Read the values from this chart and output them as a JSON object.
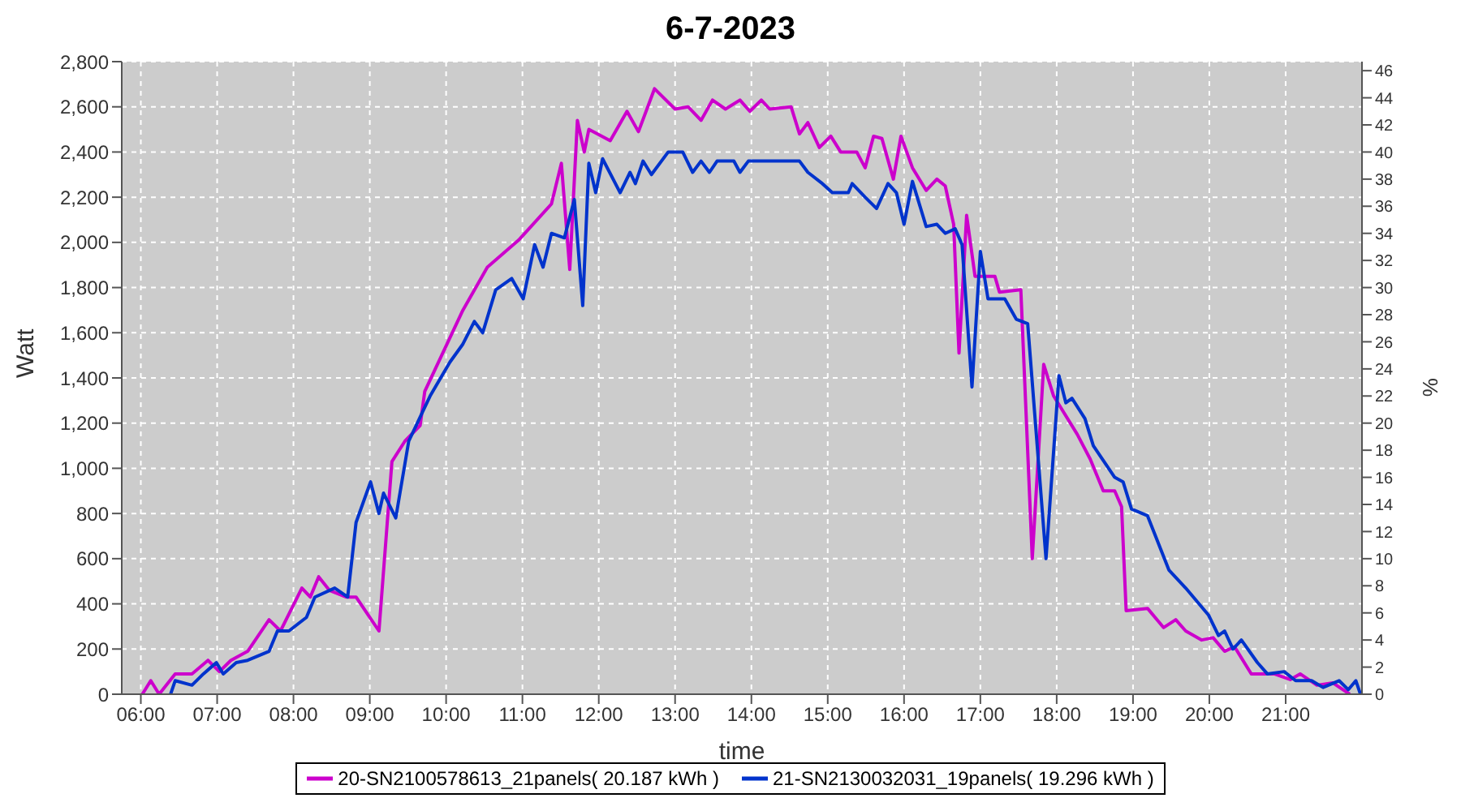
{
  "chart_data": {
    "type": "line",
    "title": "6-7-2023",
    "xlabel": "time",
    "ylabel": "Watt",
    "y2label": "%",
    "xlim": [
      5.75,
      22
    ],
    "xticks": [
      {
        "value": 6,
        "label": "06:00"
      },
      {
        "value": 7,
        "label": "07:00"
      },
      {
        "value": 8,
        "label": "08:00"
      },
      {
        "value": 9,
        "label": "09:00"
      },
      {
        "value": 10,
        "label": "10:00"
      },
      {
        "value": 11,
        "label": "11:00"
      },
      {
        "value": 12,
        "label": "12:00"
      },
      {
        "value": 13,
        "label": "13:00"
      },
      {
        "value": 14,
        "label": "14:00"
      },
      {
        "value": 15,
        "label": "15:00"
      },
      {
        "value": 16,
        "label": "16:00"
      },
      {
        "value": 17,
        "label": "17:00"
      },
      {
        "value": 18,
        "label": "18:00"
      },
      {
        "value": 19,
        "label": "19:00"
      },
      {
        "value": 20,
        "label": "20:00"
      },
      {
        "value": 21,
        "label": "21:00"
      }
    ],
    "ylim": [
      0,
      2800
    ],
    "yticks": [
      0,
      200,
      400,
      600,
      800,
      {
        "value": 1000,
        "label": "1,000"
      },
      {
        "value": 1200,
        "label": "1,200"
      },
      {
        "value": 1400,
        "label": "1,400"
      },
      {
        "value": 1600,
        "label": "1,600"
      },
      {
        "value": 1800,
        "label": "1,800"
      },
      {
        "value": 2000,
        "label": "2,000"
      },
      {
        "value": 2200,
        "label": "2,200"
      },
      {
        "value": 2400,
        "label": "2,400"
      },
      {
        "value": 2600,
        "label": "2,600"
      },
      {
        "value": 2800,
        "label": "2,800"
      }
    ],
    "y2lim": [
      0,
      46.667
    ],
    "y2ticks": [
      0,
      2,
      4,
      6,
      8,
      10,
      12,
      14,
      16,
      18,
      20,
      22,
      24,
      26,
      28,
      30,
      32,
      34,
      36,
      38,
      40,
      42,
      44,
      46
    ],
    "grid": true,
    "legend": "bottom",
    "series": [
      {
        "name": "20-SN2100578613_21panels( 20.187 kWh )",
        "color": "#cc00cc",
        "x": [
          6.02,
          6.13,
          6.24,
          6.45,
          6.67,
          6.88,
          7.03,
          7.18,
          7.4,
          7.68,
          7.83,
          8.11,
          8.22,
          8.33,
          8.47,
          8.69,
          8.82,
          9.12,
          9.29,
          9.46,
          9.66,
          9.72,
          10.22,
          10.54,
          10.95,
          11.38,
          11.51,
          11.62,
          11.72,
          11.81,
          11.87,
          12.15,
          12.37,
          12.52,
          12.73,
          13.0,
          13.17,
          13.34,
          13.49,
          13.66,
          13.85,
          13.98,
          14.13,
          14.24,
          14.52,
          14.63,
          14.74,
          14.89,
          15.04,
          15.17,
          15.38,
          15.49,
          15.6,
          15.71,
          15.86,
          15.96,
          16.11,
          16.29,
          16.43,
          16.54,
          16.65,
          16.72,
          16.82,
          16.93,
          17.19,
          17.25,
          17.53,
          17.68,
          17.83,
          17.96,
          18.27,
          18.44,
          18.61,
          18.76,
          18.85,
          18.91,
          19.19,
          19.4,
          19.56,
          19.69,
          19.9,
          20.05,
          20.2,
          20.33,
          20.55,
          20.85,
          21.06,
          21.19,
          21.41,
          21.62,
          21.84
        ],
        "values": [
          0,
          60,
          0,
          90,
          90,
          150,
          100,
          150,
          190,
          330,
          280,
          470,
          430,
          520,
          460,
          430,
          430,
          280,
          1030,
          1120,
          1190,
          1340,
          1700,
          1890,
          2010,
          2170,
          2350,
          1880,
          2540,
          2400,
          2500,
          2450,
          2580,
          2490,
          2680,
          2590,
          2600,
          2540,
          2630,
          2590,
          2630,
          2580,
          2630,
          2590,
          2600,
          2480,
          2530,
          2420,
          2470,
          2400,
          2400,
          2330,
          2470,
          2460,
          2280,
          2470,
          2330,
          2230,
          2280,
          2250,
          2080,
          1510,
          2120,
          1850,
          1850,
          1780,
          1790,
          600,
          1460,
          1320,
          1150,
          1040,
          900,
          900,
          830,
          370,
          380,
          295,
          330,
          280,
          240,
          250,
          190,
          210,
          90,
          90,
          65,
          90,
          40,
          50,
          0
        ]
      },
      {
        "name": "21-SN2130032031_19panels( 19.296 kWh )",
        "color": "#0033cc",
        "x": [
          6.39,
          6.45,
          6.67,
          6.82,
          6.99,
          7.08,
          7.25,
          7.4,
          7.68,
          7.79,
          7.94,
          8.17,
          8.28,
          8.54,
          8.71,
          8.82,
          9.01,
          9.12,
          9.18,
          9.34,
          9.51,
          9.79,
          10.05,
          10.22,
          10.37,
          10.48,
          10.65,
          10.86,
          11.01,
          11.16,
          11.27,
          11.38,
          11.55,
          11.68,
          11.79,
          11.87,
          11.96,
          12.05,
          12.28,
          12.41,
          12.48,
          12.58,
          12.69,
          12.91,
          13.1,
          13.23,
          13.34,
          13.45,
          13.55,
          13.77,
          13.85,
          13.96,
          14.63,
          14.74,
          14.93,
          15.06,
          15.27,
          15.32,
          15.49,
          15.64,
          15.79,
          15.9,
          16.0,
          16.11,
          16.29,
          16.43,
          16.54,
          16.67,
          16.76,
          16.89,
          17.0,
          17.1,
          17.32,
          17.47,
          17.62,
          17.86,
          18.03,
          18.12,
          18.2,
          18.37,
          18.48,
          18.76,
          18.87,
          18.98,
          19.19,
          19.47,
          19.69,
          19.99,
          20.12,
          20.2,
          20.31,
          20.42,
          20.63,
          20.76,
          20.98,
          21.13,
          21.34,
          21.49,
          21.7,
          21.82,
          21.92,
          21.98
        ],
        "values": [
          0,
          60,
          40,
          90,
          140,
          90,
          140,
          150,
          190,
          280,
          280,
          340,
          430,
          470,
          430,
          760,
          940,
          800,
          890,
          780,
          1120,
          1320,
          1470,
          1550,
          1650,
          1600,
          1790,
          1840,
          1750,
          1990,
          1890,
          2040,
          2020,
          2190,
          1720,
          2350,
          2220,
          2370,
          2220,
          2310,
          2260,
          2360,
          2300,
          2400,
          2400,
          2310,
          2360,
          2310,
          2360,
          2360,
          2310,
          2360,
          2360,
          2310,
          2260,
          2220,
          2220,
          2260,
          2200,
          2150,
          2260,
          2220,
          2080,
          2270,
          2070,
          2080,
          2040,
          2060,
          1990,
          1360,
          1960,
          1750,
          1750,
          1660,
          1640,
          600,
          1410,
          1290,
          1310,
          1220,
          1100,
          960,
          940,
          820,
          790,
          550,
          470,
          350,
          260,
          280,
          200,
          240,
          140,
          90,
          100,
          60,
          60,
          30,
          60,
          20,
          60,
          0
        ]
      }
    ]
  }
}
